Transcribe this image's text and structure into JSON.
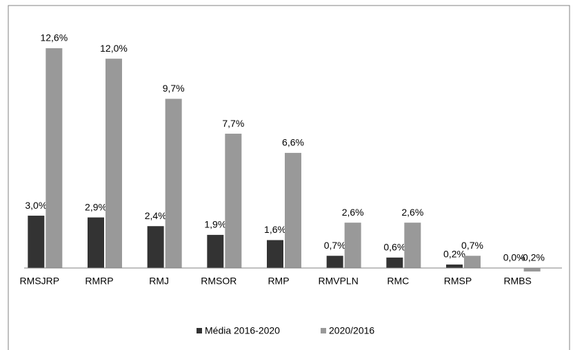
{
  "chart_data": {
    "type": "bar",
    "categories": [
      "RMSJRP",
      "RMRP",
      "RMJ",
      "RMSOR",
      "RMP",
      "RMVPLN",
      "RMC",
      "RMSP",
      "RMBS"
    ],
    "series": [
      {
        "name": "Média 2016-2020",
        "color": "#333333",
        "values": [
          3.0,
          2.9,
          2.4,
          1.9,
          1.6,
          0.7,
          0.6,
          0.2,
          0.0
        ],
        "value_labels": [
          "3,0%",
          "2,9%",
          "2,4%",
          "1,9%",
          "1,6%",
          "0,7%",
          "0,6%",
          "0,2%",
          "0,0%"
        ]
      },
      {
        "name": "2020/2016",
        "color": "#999999",
        "values": [
          12.6,
          12.0,
          9.7,
          7.7,
          6.6,
          2.6,
          2.6,
          0.7,
          -0.2
        ],
        "value_labels": [
          "12,6%",
          "12,0%",
          "9,7%",
          "7,7%",
          "6,6%",
          "2,6%",
          "2,6%",
          "0,7%",
          "-0,2%"
        ]
      }
    ],
    "legend": "bottom"
  }
}
